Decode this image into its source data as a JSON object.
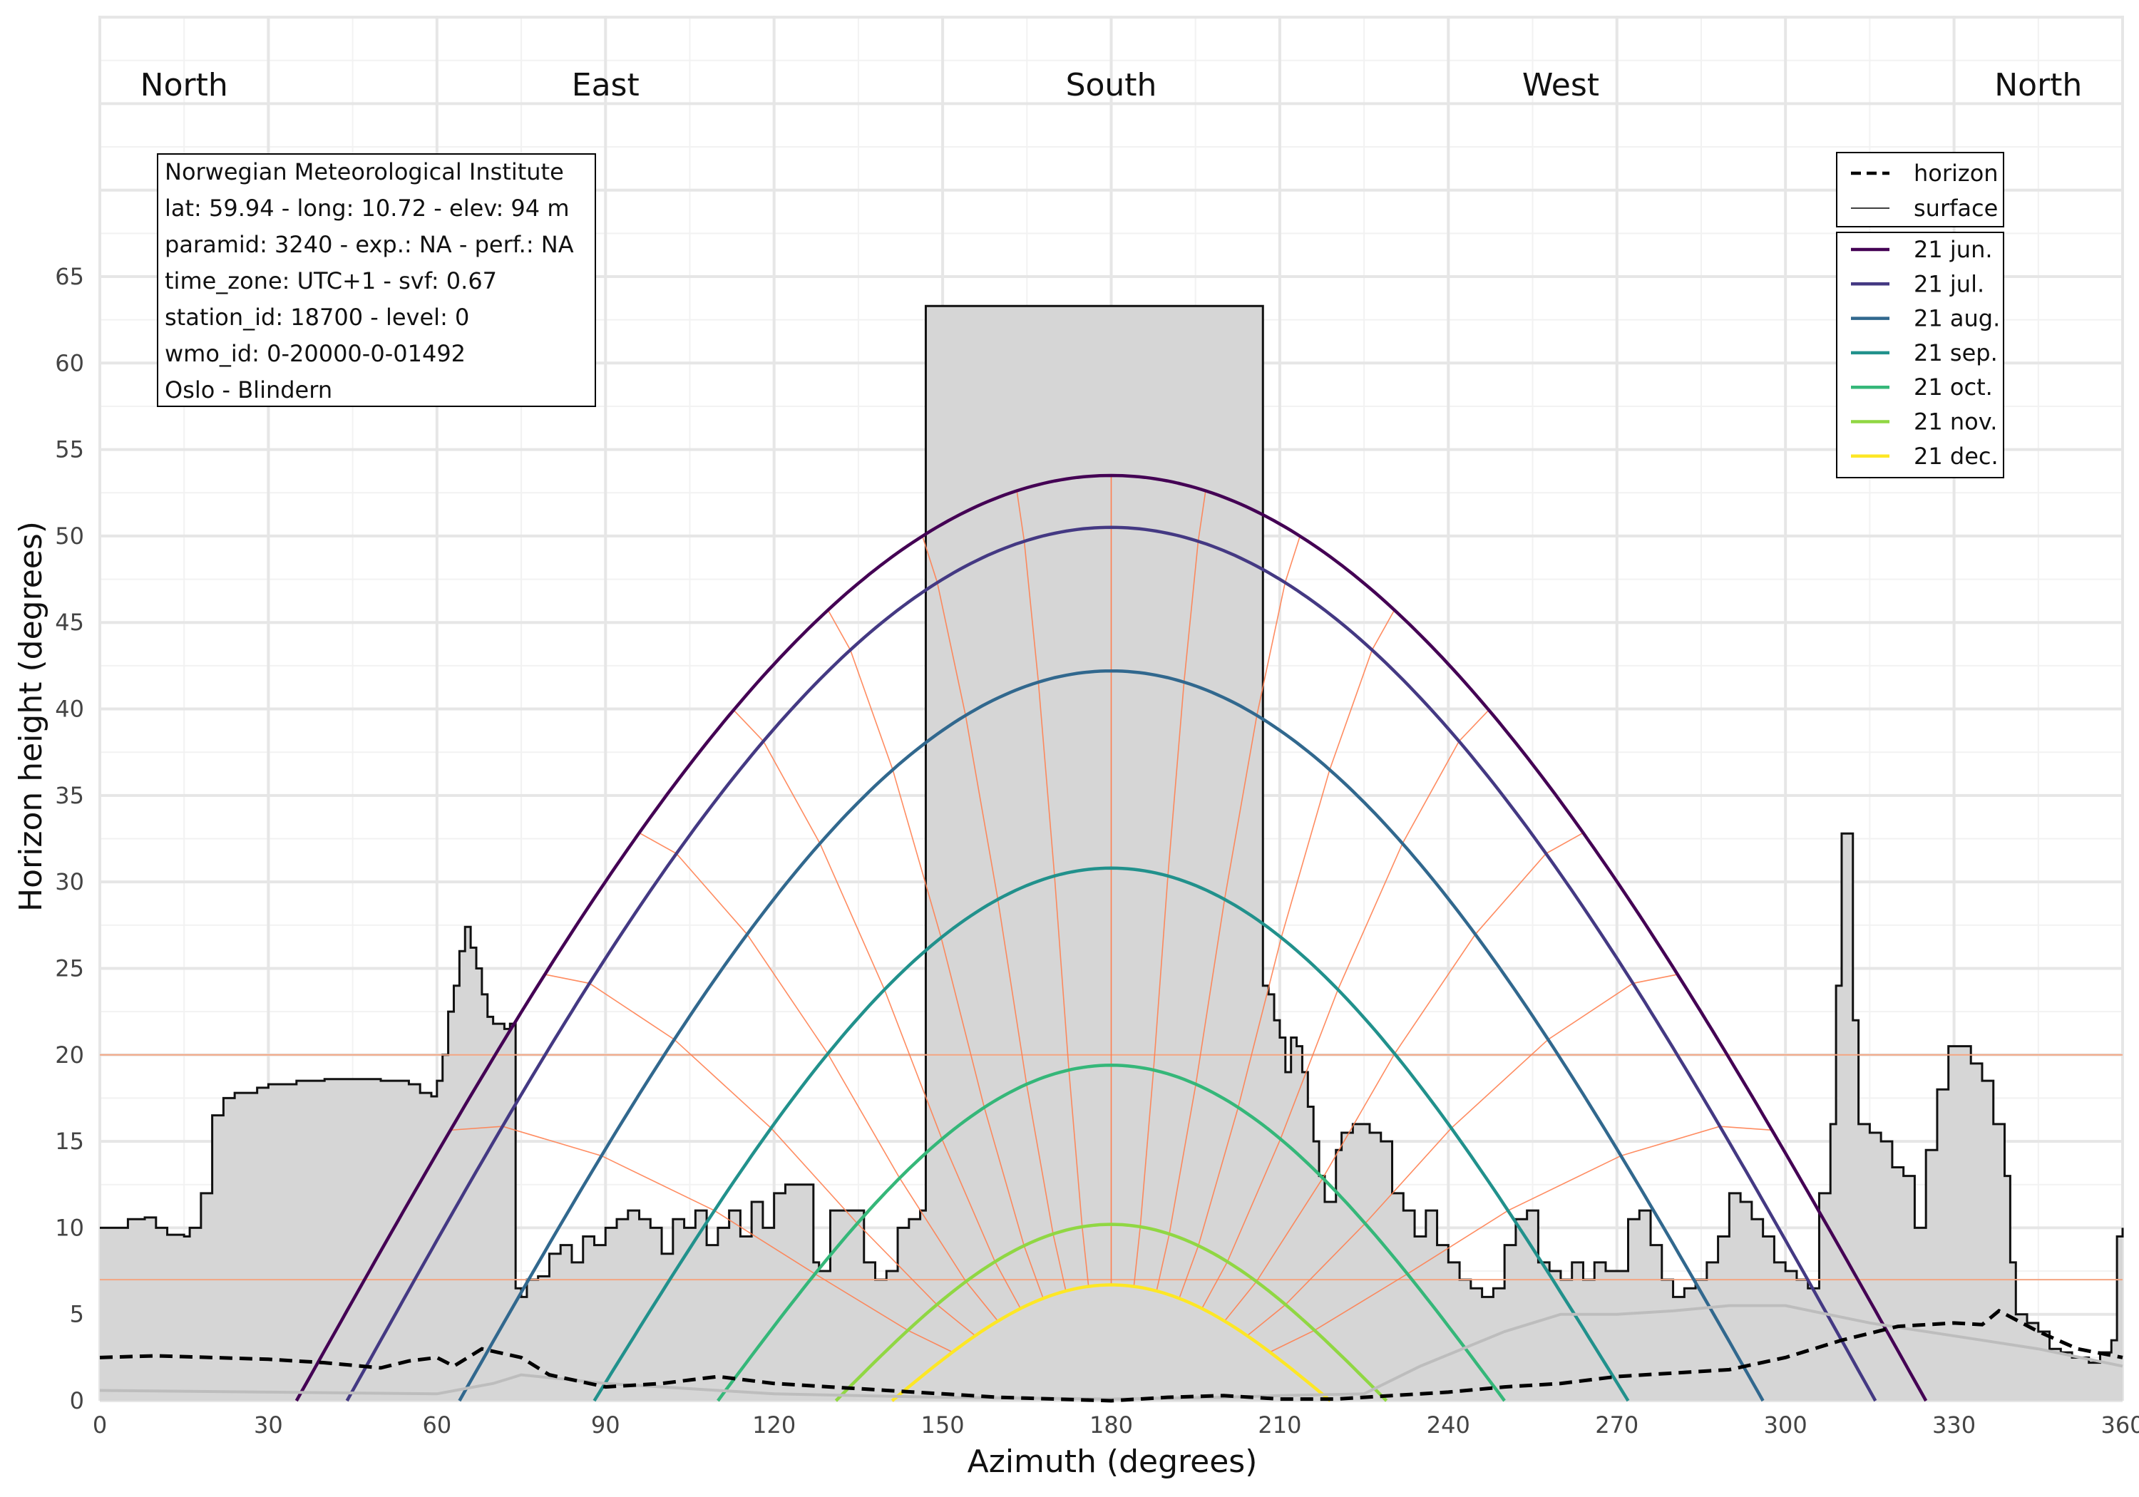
{
  "chart_data": {
    "type": "line",
    "xlabel": "Azimuth (degrees)",
    "ylabel": "Horizon height (degrees)",
    "xlim": [
      0,
      360
    ],
    "ylim": [
      0,
      65
    ],
    "x_ticks": [
      "0",
      "30",
      "60",
      "90",
      "120",
      "150",
      "180",
      "210",
      "240",
      "270",
      "300",
      "330",
      "360"
    ],
    "y_ticks": [
      "0",
      "5",
      "10",
      "15",
      "20",
      "25",
      "30",
      "35",
      "40",
      "45",
      "50",
      "55",
      "60",
      "65"
    ],
    "direction_labels": [
      {
        "label": "North",
        "azimuth": 15
      },
      {
        "label": "East",
        "azimuth": 90
      },
      {
        "label": "South",
        "azimuth": 180
      },
      {
        "label": "West",
        "azimuth": 260
      },
      {
        "label": "North",
        "azimuth": 345
      }
    ],
    "grid": true,
    "reference_lines_y": [
      20,
      7
    ],
    "reference_line_color": "#f4a582",
    "info_box": [
      "Norwegian Meteorological Institute",
      "lat: 59.94 - long: 10.72 - elev: 94 m",
      "paramid: 3240 - exp.: NA - perf.: NA",
      "time_zone: UTC+1 - svf: 0.67",
      "station_id: 18700 - level: 0",
      "wmo_id: 0-20000-0-01492",
      "Oslo - Blindern"
    ],
    "legend_position": "top-right",
    "line_legend": [
      {
        "name": "horizon",
        "style": "dashed"
      },
      {
        "name": "surface",
        "style": "solid"
      }
    ],
    "sun_paths": [
      {
        "name": "21 jun.",
        "color": "#440154",
        "max_elevation": 53.5,
        "rise_azimuth": 35,
        "set_azimuth": 325
      },
      {
        "name": "21 jul.",
        "color": "#443983",
        "max_elevation": 50.5,
        "rise_azimuth": 44,
        "set_azimuth": 316
      },
      {
        "name": "21 aug.",
        "color": "#31688e",
        "max_elevation": 42.2,
        "rise_azimuth": 64,
        "set_azimuth": 296
      },
      {
        "name": "21 sep.",
        "color": "#21918c",
        "max_elevation": 30.8,
        "rise_azimuth": 88,
        "set_azimuth": 272
      },
      {
        "name": "21 oct.",
        "color": "#35b779",
        "max_elevation": 19.4,
        "rise_azimuth": 110,
        "set_azimuth": 250
      },
      {
        "name": "21 nov.",
        "color": "#90d743",
        "max_elevation": 10.2,
        "rise_azimuth": 131,
        "set_azimuth": 229
      },
      {
        "name": "21 dec.",
        "color": "#fde725",
        "max_elevation": 6.7,
        "rise_azimuth": 141,
        "set_azimuth": 219
      }
    ],
    "horizon": [
      [
        0,
        2.5
      ],
      [
        10,
        2.6
      ],
      [
        20,
        2.5
      ],
      [
        30,
        2.4
      ],
      [
        40,
        2.2
      ],
      [
        50,
        1.9
      ],
      [
        55,
        2.3
      ],
      [
        60,
        2.5
      ],
      [
        63,
        2.0
      ],
      [
        68,
        3.0
      ],
      [
        75,
        2.5
      ],
      [
        80,
        1.5
      ],
      [
        90,
        0.8
      ],
      [
        100,
        1.0
      ],
      [
        110,
        1.4
      ],
      [
        120,
        1.0
      ],
      [
        130,
        0.8
      ],
      [
        140,
        0.6
      ],
      [
        150,
        0.4
      ],
      [
        160,
        0.2
      ],
      [
        170,
        0.1
      ],
      [
        180,
        0.0
      ],
      [
        190,
        0.2
      ],
      [
        200,
        0.3
      ],
      [
        210,
        0.1
      ],
      [
        220,
        0.1
      ],
      [
        230,
        0.3
      ],
      [
        240,
        0.5
      ],
      [
        250,
        0.8
      ],
      [
        260,
        1.0
      ],
      [
        270,
        1.4
      ],
      [
        280,
        1.6
      ],
      [
        290,
        1.8
      ],
      [
        300,
        2.5
      ],
      [
        310,
        3.5
      ],
      [
        320,
        4.3
      ],
      [
        330,
        4.5
      ],
      [
        335,
        4.4
      ],
      [
        338,
        5.2
      ],
      [
        345,
        4.0
      ],
      [
        352,
        3.0
      ],
      [
        360,
        2.5
      ]
    ],
    "surface": [
      [
        0,
        0.6
      ],
      [
        30,
        0.5
      ],
      [
        60,
        0.4
      ],
      [
        70,
        1.0
      ],
      [
        75,
        1.5
      ],
      [
        90,
        1.0
      ],
      [
        120,
        0.4
      ],
      [
        150,
        0.2
      ],
      [
        180,
        0.1
      ],
      [
        200,
        0.2
      ],
      [
        210,
        0.3
      ],
      [
        225,
        0.4
      ],
      [
        235,
        2.0
      ],
      [
        250,
        4.0
      ],
      [
        260,
        5.0
      ],
      [
        270,
        5.0
      ],
      [
        280,
        5.2
      ],
      [
        290,
        5.5
      ],
      [
        300,
        5.5
      ],
      [
        315,
        4.5
      ],
      [
        325,
        4.0
      ],
      [
        335,
        3.5
      ],
      [
        345,
        3.0
      ],
      [
        360,
        2.0
      ]
    ],
    "terrain": [
      [
        0,
        10
      ],
      [
        5,
        10.5
      ],
      [
        8,
        10.6
      ],
      [
        10,
        10
      ],
      [
        12,
        9.6
      ],
      [
        15,
        9.5
      ],
      [
        16,
        10
      ],
      [
        18,
        12
      ],
      [
        20,
        16.5
      ],
      [
        22,
        17.5
      ],
      [
        24,
        17.8
      ],
      [
        28,
        18.1
      ],
      [
        30,
        18.3
      ],
      [
        35,
        18.5
      ],
      [
        40,
        18.6
      ],
      [
        45,
        18.6
      ],
      [
        50,
        18.5
      ],
      [
        55,
        18.3
      ],
      [
        57,
        17.8
      ],
      [
        59,
        17.6
      ],
      [
        60,
        18.5
      ],
      [
        61,
        20
      ],
      [
        62,
        22.5
      ],
      [
        63,
        24.0
      ],
      [
        64,
        26
      ],
      [
        65,
        27.4
      ],
      [
        66,
        26.2
      ],
      [
        67,
        25
      ],
      [
        68,
        23.5
      ],
      [
        69,
        22.2
      ],
      [
        70,
        21.8
      ],
      [
        72,
        21.5
      ],
      [
        73,
        21.8
      ],
      [
        74,
        6.5
      ],
      [
        75,
        6.0
      ],
      [
        76,
        7.0
      ],
      [
        78,
        7.2
      ],
      [
        80,
        8.5
      ],
      [
        82,
        9.0
      ],
      [
        84,
        8.0
      ],
      [
        86,
        9.5
      ],
      [
        88,
        9.0
      ],
      [
        90,
        10.0
      ],
      [
        92,
        10.5
      ],
      [
        94,
        11.0
      ],
      [
        96,
        10.5
      ],
      [
        98,
        10.0
      ],
      [
        100,
        8.5
      ],
      [
        102,
        10.5
      ],
      [
        104,
        10.0
      ],
      [
        106,
        11.0
      ],
      [
        108,
        9.0
      ],
      [
        110,
        10.0
      ],
      [
        112,
        11.0
      ],
      [
        114,
        9.5
      ],
      [
        116,
        11.5
      ],
      [
        118,
        10.0
      ],
      [
        120,
        12.0
      ],
      [
        122,
        12.5
      ],
      [
        124,
        12.5
      ],
      [
        126,
        12.5
      ],
      [
        127,
        8.0
      ],
      [
        128,
        7.5
      ],
      [
        130,
        11.0
      ],
      [
        132,
        11.0
      ],
      [
        134,
        11.0
      ],
      [
        136,
        8.0
      ],
      [
        138,
        7.0
      ],
      [
        140,
        7.5
      ],
      [
        142,
        10.0
      ],
      [
        144,
        10.5
      ],
      [
        146,
        11.0
      ],
      [
        147,
        63.3
      ],
      [
        206,
        63.3
      ],
      [
        207,
        24.0
      ],
      [
        208,
        23.5
      ],
      [
        209,
        22.0
      ],
      [
        210,
        21.0
      ],
      [
        211,
        19.0
      ],
      [
        212,
        21.0
      ],
      [
        213,
        20.5
      ],
      [
        214,
        19.0
      ],
      [
        215,
        17.0
      ],
      [
        216,
        15.0
      ],
      [
        217,
        13.0
      ],
      [
        218,
        11.5
      ],
      [
        220,
        14.5
      ],
      [
        221,
        15.5
      ],
      [
        223,
        16.0
      ],
      [
        226,
        15.5
      ],
      [
        228,
        15.0
      ],
      [
        230,
        12.0
      ],
      [
        232,
        11.0
      ],
      [
        234,
        9.5
      ],
      [
        236,
        11.0
      ],
      [
        238,
        9.0
      ],
      [
        240,
        8.0
      ],
      [
        242,
        7.0
      ],
      [
        244,
        6.5
      ],
      [
        246,
        6.0
      ],
      [
        248,
        6.5
      ],
      [
        250,
        9.0
      ],
      [
        252,
        10.5
      ],
      [
        254,
        11.0
      ],
      [
        256,
        8.0
      ],
      [
        258,
        7.5
      ],
      [
        260,
        7.0
      ],
      [
        262,
        8.0
      ],
      [
        264,
        7.0
      ],
      [
        266,
        8.0
      ],
      [
        268,
        7.5
      ],
      [
        270,
        7.5
      ],
      [
        272,
        10.5
      ],
      [
        274,
        11.0
      ],
      [
        276,
        9.0
      ],
      [
        278,
        7.0
      ],
      [
        280,
        6.0
      ],
      [
        282,
        6.5
      ],
      [
        284,
        7.0
      ],
      [
        286,
        8.0
      ],
      [
        288,
        9.5
      ],
      [
        290,
        12.0
      ],
      [
        292,
        11.5
      ],
      [
        294,
        10.5
      ],
      [
        296,
        9.5
      ],
      [
        298,
        8.0
      ],
      [
        300,
        7.5
      ],
      [
        302,
        7.0
      ],
      [
        304,
        6.5
      ],
      [
        306,
        12.0
      ],
      [
        308,
        16.0
      ],
      [
        309,
        24.0
      ],
      [
        310,
        32.8
      ],
      [
        312,
        22.0
      ],
      [
        313,
        16.0
      ],
      [
        315,
        15.5
      ],
      [
        317,
        15.0
      ],
      [
        319,
        13.5
      ],
      [
        321,
        13.0
      ],
      [
        323,
        10.0
      ],
      [
        325,
        14.5
      ],
      [
        327,
        18.0
      ],
      [
        329,
        20.5
      ],
      [
        331,
        20.5
      ],
      [
        333,
        19.5
      ],
      [
        335,
        18.5
      ],
      [
        337,
        16.0
      ],
      [
        339,
        13.0
      ],
      [
        340,
        8.0
      ],
      [
        341,
        5.0
      ],
      [
        343,
        4.5
      ],
      [
        345,
        4.0
      ],
      [
        347,
        3.0
      ],
      [
        349,
        2.8
      ],
      [
        351,
        2.5
      ],
      [
        354,
        2.2
      ],
      [
        356,
        2.8
      ],
      [
        358,
        3.5
      ],
      [
        359,
        9.5
      ],
      [
        360,
        10.0
      ]
    ]
  }
}
